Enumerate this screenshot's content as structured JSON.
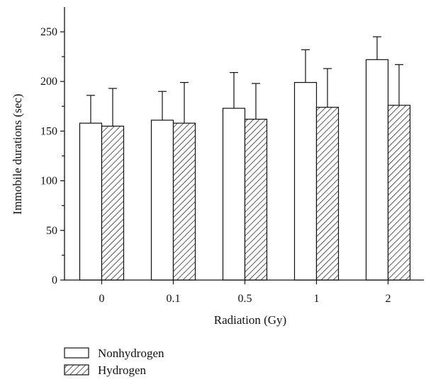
{
  "chart_data": {
    "type": "bar",
    "title": "",
    "xlabel": "Radiation (Gy)",
    "ylabel": "Immobile durations (sec)",
    "categories": [
      "0",
      "0.1",
      "0.5",
      "1",
      "2"
    ],
    "ylim": [
      0,
      270
    ],
    "yticks": [
      0,
      50,
      100,
      150,
      200,
      250
    ],
    "grid": false,
    "legend_position": "bottom-left, below chart",
    "series": [
      {
        "name": "Nonhydrogen",
        "fill": "white",
        "values": [
          158,
          161,
          173,
          199,
          222
        ],
        "error": [
          28,
          29,
          36,
          33,
          23
        ]
      },
      {
        "name": "Hydrogen",
        "fill": "diagonal-hatch",
        "values": [
          155,
          158,
          162,
          174,
          176
        ],
        "error": [
          38,
          41,
          36,
          39,
          41
        ]
      }
    ]
  },
  "colors": {
    "stroke": "#111111",
    "background": "#ffffff",
    "bar_fill": "#ffffff",
    "hatch": "#111111"
  }
}
